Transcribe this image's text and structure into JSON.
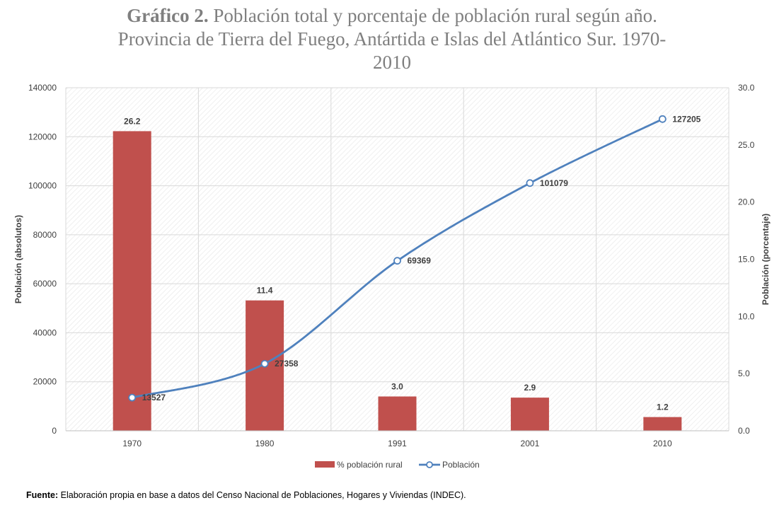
{
  "title": {
    "number": "Gráfico 2.",
    "line1": "Población total y porcentaje de población rural según año.",
    "line2": "Provincia de Tierra del Fuego, Antártida e Islas del Atlántico Sur. 1970-",
    "line3": "2010"
  },
  "source": {
    "label": "Fuente:",
    "text": "Elaboración propia en base a datos del Censo Nacional de Poblaciones, Hogares y Viviendas (INDEC)."
  },
  "colors": {
    "bar": "#c0504d",
    "line": "#4f81bd",
    "title": "#7f7f7f"
  },
  "chart_data": {
    "type": "bar",
    "categories": [
      "1970",
      "1980",
      "1991",
      "2001",
      "2010"
    ],
    "series": [
      {
        "name": "% población rural",
        "type": "bar",
        "axis": "right",
        "values": [
          26.2,
          11.4,
          3.0,
          2.9,
          1.2
        ],
        "labels": [
          "26.2",
          "11.4",
          "3.0",
          "2.9",
          "1.2"
        ]
      },
      {
        "name": "Población",
        "type": "line",
        "axis": "left",
        "values": [
          13527,
          27358,
          69369,
          101079,
          127205
        ],
        "labels": [
          "13527",
          "27358",
          "69369",
          "101079",
          "127205"
        ]
      }
    ],
    "ylabel": "Población (absolutos)",
    "y2label": "Población (porcentaje)",
    "ylim": [
      0,
      140000
    ],
    "y2lim": [
      0,
      30
    ],
    "yticks": [
      "0",
      "20000",
      "40000",
      "60000",
      "80000",
      "100000",
      "120000",
      "140000"
    ],
    "y2ticks": [
      "0.0",
      "5.0",
      "10.0",
      "15.0",
      "20.0",
      "25.0",
      "30.0"
    ],
    "legend_position": "bottom",
    "grid": true
  }
}
